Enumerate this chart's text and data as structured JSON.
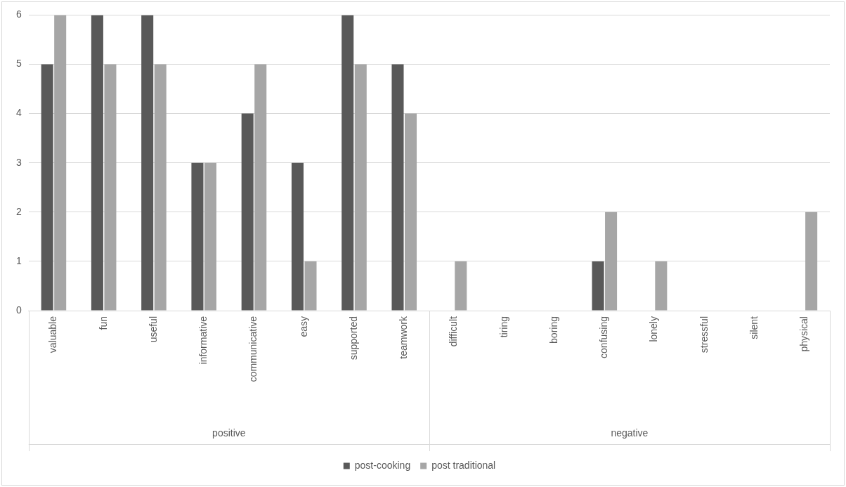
{
  "chart_data": {
    "type": "bar",
    "categories": [
      "valuable",
      "fun",
      "useful",
      "informative",
      "communicative",
      "easy",
      "supported",
      "teamwork",
      "difficult",
      "tiring",
      "boring",
      "confusing",
      "lonely",
      "stressful",
      "silent",
      "physical"
    ],
    "series": [
      {
        "name": "post-cooking",
        "color": "#595959",
        "values": [
          5,
          6,
          6,
          3,
          4,
          3,
          6,
          5,
          0,
          0,
          0,
          1,
          0,
          0,
          0,
          0
        ]
      },
      {
        "name": "post traditional",
        "color": "#a6a6a6",
        "values": [
          6,
          5,
          5,
          3,
          5,
          1,
          5,
          4,
          1,
          0,
          0,
          2,
          1,
          0,
          0,
          2
        ]
      }
    ],
    "annotations": [
      "positive",
      "negative"
    ],
    "ylim": [
      0,
      6
    ],
    "yticks": [
      0,
      1,
      2,
      3,
      4,
      5,
      6
    ],
    "grid": "y",
    "legend": "bottom"
  }
}
